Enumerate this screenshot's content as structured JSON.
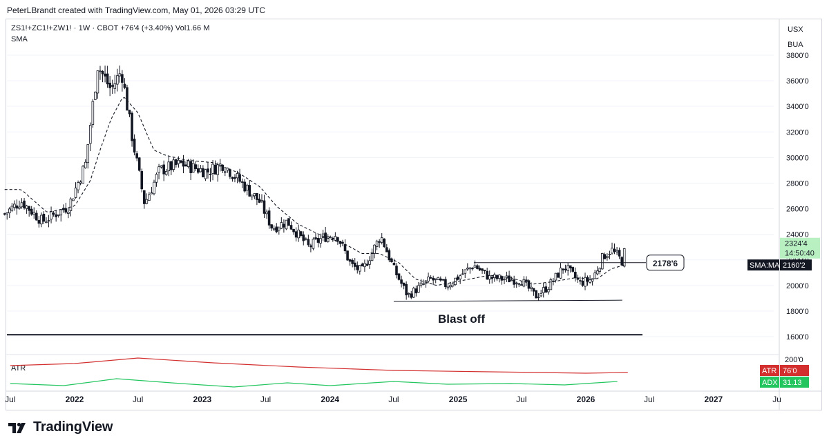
{
  "header": {
    "attribution": "PeterLBrandt created with TradingView.com, May 01, 2026 03:29 UTC"
  },
  "legend": {
    "symbol_line": "ZS1!+ZC1!+ZW1! · 1W · CBOT  +76'4 (+3.40%)  Vol1.66 M",
    "sma_label": "SMA"
  },
  "side_buttons": [
    "USX",
    "BUA"
  ],
  "brand": {
    "name": "TradingView"
  },
  "colors": {
    "up": "#131722",
    "down": "#131722",
    "sma": "#131722",
    "atr": "#d32f2f",
    "adx": "#22c55e",
    "price_tag": "#b9f0c1"
  },
  "chart_data": {
    "type": "candlestick",
    "title": "",
    "price_axis": {
      "ticks": [
        "3800'0",
        "3600'0",
        "3400'0",
        "3200'0",
        "3000'0",
        "2800'0",
        "2600'0",
        "2400'0",
        "2200'0",
        "2000'0",
        "1800'0",
        "1600'0"
      ],
      "tick_values": [
        3800,
        3600,
        3400,
        3200,
        3000,
        2800,
        2600,
        2400,
        2200,
        2000,
        1800,
        1600
      ],
      "range": [
        1550,
        3860
      ]
    },
    "time_axis": {
      "labels": [
        "Jul",
        "2022",
        "Jul",
        "2023",
        "Jul",
        "2024",
        "Jul",
        "2025",
        "Jul",
        "2026",
        "Jul",
        "2027",
        "Ju"
      ],
      "label_dates": [
        "2021-07",
        "2022-01",
        "2022-07",
        "2023-01",
        "2023-07",
        "2024-01",
        "2024-07",
        "2025-01",
        "2025-07",
        "2026-01",
        "2026-07",
        "2027-01",
        "2027-07"
      ]
    },
    "price_series": {
      "name": "ZS1!+ZC1!+ZW1!",
      "anchors": [
        [
          "2021-06-15",
          2560
        ],
        [
          "2021-08-01",
          2660
        ],
        [
          "2021-10-01",
          2500
        ],
        [
          "2021-12-15",
          2620
        ],
        [
          "2022-02-01",
          2950
        ],
        [
          "2022-03-08",
          3720
        ],
        [
          "2022-04-15",
          3530
        ],
        [
          "2022-05-15",
          3680
        ],
        [
          "2022-06-15",
          3150
        ],
        [
          "2022-07-20",
          2640
        ],
        [
          "2022-09-01",
          2900
        ],
        [
          "2022-11-01",
          2950
        ],
        [
          "2023-01-15",
          2890
        ],
        [
          "2023-03-01",
          2950
        ],
        [
          "2023-05-01",
          2780
        ],
        [
          "2023-06-15",
          2650
        ],
        [
          "2023-07-20",
          2450
        ],
        [
          "2023-09-01",
          2500
        ],
        [
          "2023-11-01",
          2300
        ],
        [
          "2023-12-15",
          2380
        ],
        [
          "2024-01-20",
          2400
        ],
        [
          "2024-03-01",
          2160
        ],
        [
          "2024-04-01",
          2110
        ],
        [
          "2024-05-25",
          2390
        ],
        [
          "2024-07-01",
          2130
        ],
        [
          "2024-08-10",
          1920
        ],
        [
          "2024-09-15",
          1990
        ],
        [
          "2024-10-15",
          2050
        ],
        [
          "2024-12-01",
          2000
        ],
        [
          "2025-02-15",
          2160
        ],
        [
          "2025-04-01",
          2060
        ],
        [
          "2025-05-15",
          2050
        ],
        [
          "2025-07-01",
          2040
        ],
        [
          "2025-08-10",
          1915
        ],
        [
          "2025-09-15",
          1990
        ],
        [
          "2025-11-01",
          2150
        ],
        [
          "2025-12-15",
          2020
        ],
        [
          "2026-01-20",
          2050
        ],
        [
          "2026-02-20",
          2230
        ],
        [
          "2026-03-15",
          2280
        ],
        [
          "2026-04-15",
          2190
        ],
        [
          "2026-04-27",
          2324
        ]
      ],
      "last_price": "2324'4",
      "countdown": "14:50:40"
    },
    "sma": {
      "label": "SMA:MA",
      "value": "2160'2",
      "anchors": [
        [
          "2021-06-15",
          2750
        ],
        [
          "2021-08-01",
          2750
        ],
        [
          "2021-10-15",
          2570
        ],
        [
          "2022-01-01",
          2620
        ],
        [
          "2022-02-15",
          2820
        ],
        [
          "2022-03-15",
          3060
        ],
        [
          "2022-04-15",
          3300
        ],
        [
          "2022-05-20",
          3480
        ],
        [
          "2022-07-01",
          3350
        ],
        [
          "2022-08-15",
          3060
        ],
        [
          "2022-09-15",
          3020
        ],
        [
          "2022-11-15",
          2980
        ],
        [
          "2023-02-01",
          2960
        ],
        [
          "2023-04-15",
          2880
        ],
        [
          "2023-06-15",
          2770
        ],
        [
          "2023-08-01",
          2620
        ],
        [
          "2023-10-01",
          2480
        ],
        [
          "2023-12-15",
          2380
        ],
        [
          "2024-02-15",
          2320
        ],
        [
          "2024-04-01",
          2250
        ],
        [
          "2024-05-20",
          2250
        ],
        [
          "2024-07-15",
          2180
        ],
        [
          "2024-09-01",
          2050
        ],
        [
          "2024-11-01",
          2000
        ],
        [
          "2025-01-15",
          2040
        ],
        [
          "2025-04-01",
          2080
        ],
        [
          "2025-06-01",
          2060
        ],
        [
          "2025-08-01",
          2010
        ],
        [
          "2025-10-01",
          2030
        ],
        [
          "2025-12-01",
          2060
        ],
        [
          "2026-02-01",
          2050
        ],
        [
          "2026-03-15",
          2130
        ],
        [
          "2026-04-27",
          2165
        ]
      ]
    },
    "annotations": {
      "horizontal_line_label": "2178'6",
      "horizontal_line_value": 2178,
      "support_line": {
        "from": [
          "2024-07-01",
          1875
        ],
        "to": [
          "2026-04-15",
          1885
        ]
      },
      "resistance_line": {
        "from": [
          "2025-02-15",
          2178
        ],
        "to": [
          "2026-04-27",
          2178
        ]
      },
      "long_line_value": 1615,
      "caption": "Blast off"
    },
    "indicators": [
      {
        "name": "ATR",
        "value": "76'0"
      },
      {
        "name": "ADX",
        "value": "31.13"
      }
    ],
    "lower_axis_tick": "200'0"
  }
}
